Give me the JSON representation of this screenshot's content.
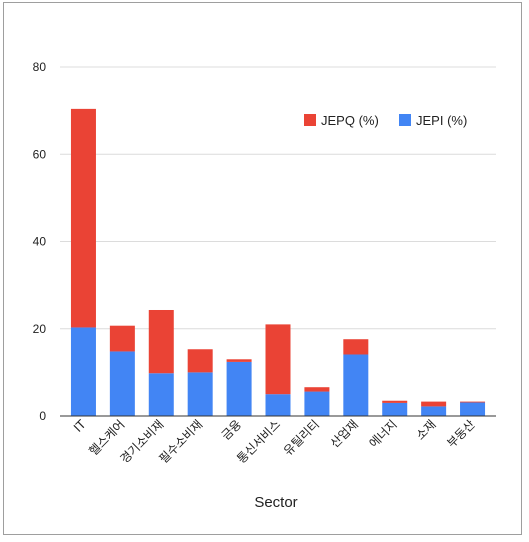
{
  "chart_data": {
    "type": "bar",
    "stacked": true,
    "xlabel": "Sector",
    "ylabel": "",
    "ylim": [
      0,
      80
    ],
    "yticks": [
      0,
      20,
      40,
      60,
      80
    ],
    "grid": true,
    "legend_position": "top-right",
    "categories": [
      "IT",
      "헬스케어",
      "경기소비재",
      "필수소비재",
      "금융",
      "통신서비스",
      "유틸리티",
      "산업재",
      "에너지",
      "소재",
      "부동산"
    ],
    "series": [
      {
        "name": "JEPI (%)",
        "color": "#4285f4",
        "values": [
          20.3,
          14.8,
          9.8,
          10.0,
          12.4,
          5.0,
          5.6,
          14.1,
          3.0,
          2.2,
          3.1
        ]
      },
      {
        "name": "JEPQ (%)",
        "color": "#ea4335",
        "values": [
          50.1,
          5.9,
          14.5,
          5.3,
          0.6,
          16.0,
          1.0,
          3.5,
          0.5,
          1.1,
          0.2
        ]
      }
    ],
    "legend_order": [
      "JEPQ (%)",
      "JEPI (%)"
    ]
  }
}
